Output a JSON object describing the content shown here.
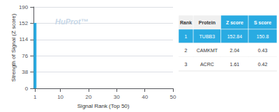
{
  "chart_data": {
    "type": "bar",
    "x": [
      1
    ],
    "values": [
      152.84
    ],
    "color": "#29ABE2",
    "xlabel": "Signal Rank (Top 50)",
    "ylabel": "Strength of Signal (Z score)",
    "xlim": [
      0.5,
      50
    ],
    "xticks": [
      1,
      10,
      20,
      30,
      40,
      50
    ],
    "ylim": [
      0,
      190
    ],
    "yticks": [
      0,
      38,
      76,
      114,
      152,
      190
    ],
    "grid": true,
    "annotations": [
      "HuProt™"
    ],
    "table": {
      "headers": [
        "Rank",
        "Protein",
        "Z score",
        "S score"
      ],
      "rows": [
        [
          "1",
          "TUBB3",
          "152.84",
          "150.8"
        ],
        [
          "2",
          "CAMKMT",
          "2.04",
          "0.43"
        ],
        [
          "3",
          "ACRC",
          "1.61",
          "0.42"
        ]
      ]
    }
  }
}
